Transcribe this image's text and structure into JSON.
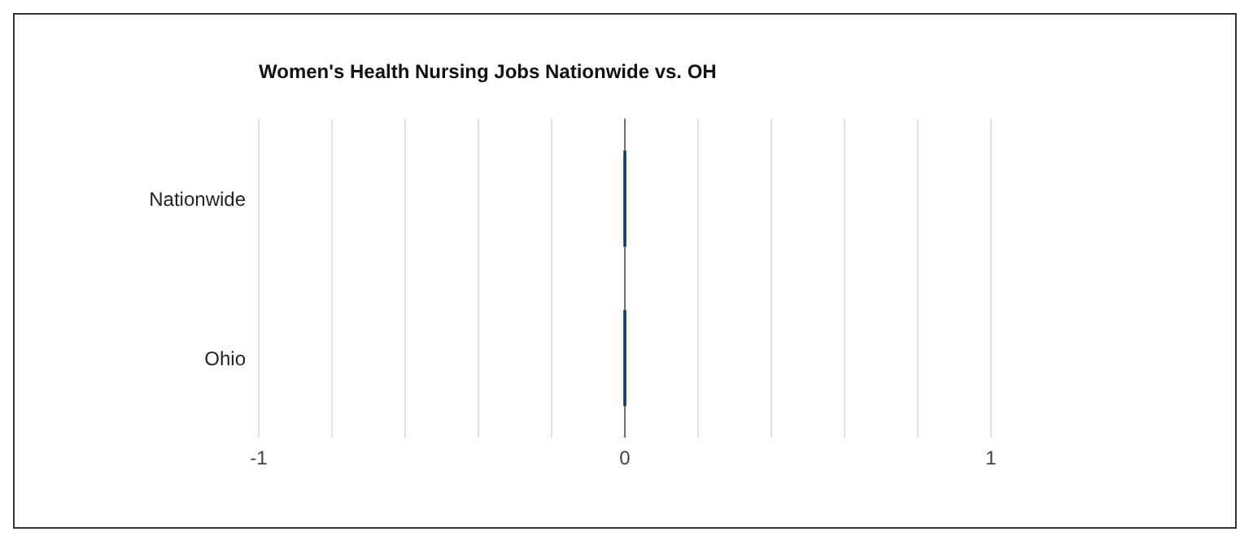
{
  "chart_data": {
    "type": "bar",
    "orientation": "horizontal",
    "title": "Women's Health Nursing Jobs Nationwide vs. OH",
    "categories": [
      "Nationwide",
      "Ohio"
    ],
    "series": [
      {
        "color": "#2b5f8e",
        "values": [
          0,
          0
        ]
      }
    ],
    "xlim": [
      -1,
      1
    ],
    "xticks": [
      -1,
      {
        "value": -0.8,
        "label": null
      },
      {
        "value": -0.6,
        "label": null
      },
      {
        "value": -0.4,
        "label": null
      },
      {
        "value": -0.2,
        "label": null
      },
      0,
      {
        "value": 0.2,
        "label": null
      },
      {
        "value": 0.4,
        "label": null
      },
      {
        "value": 0.6,
        "label": null
      },
      {
        "value": 0.8,
        "label": null
      },
      1
    ],
    "grid": "x",
    "legend": false
  }
}
